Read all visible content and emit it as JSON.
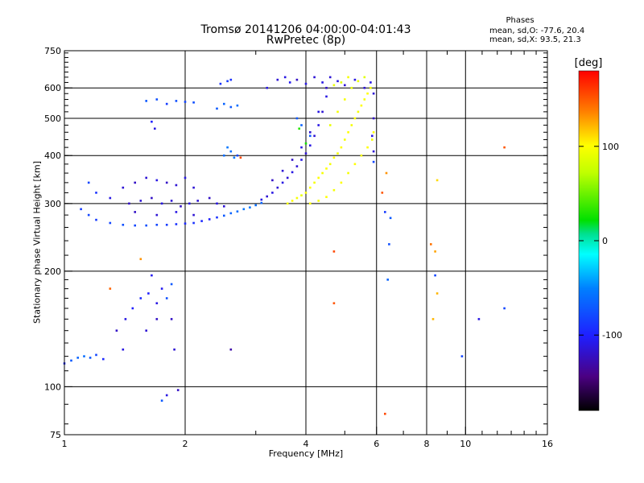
{
  "chart_data": {
    "type": "scatter",
    "title": "Tromsø 20141206 04:00:00-04:01:43",
    "subtitle": "RwPretec (8p)",
    "xlabel": "Frequency [MHz]",
    "ylabel": "Stationary phase Virtual Height [km]",
    "x_scale": "log",
    "y_scale": "log",
    "xlim": [
      1,
      16
    ],
    "ylim": [
      75,
      750
    ],
    "x_ticks": [
      {
        "value": 1,
        "label": "1"
      },
      {
        "value": 2,
        "label": "2"
      },
      {
        "value": 4,
        "label": "4"
      },
      {
        "value": 6,
        "label": "6"
      },
      {
        "value": 8,
        "label": "8"
      },
      {
        "value": 10,
        "label": "10"
      },
      {
        "value": 16,
        "label": "16"
      }
    ],
    "y_ticks": [
      {
        "value": 75,
        "label": "75"
      },
      {
        "value": 100,
        "label": "100"
      },
      {
        "value": 200,
        "label": "200"
      },
      {
        "value": 300,
        "label": "300"
      },
      {
        "value": 400,
        "label": "400"
      },
      {
        "value": 500,
        "label": "500"
      },
      {
        "value": 600,
        "label": "600"
      },
      {
        "value": 750,
        "label": "750"
      }
    ],
    "x_gridlines": [
      2,
      4,
      6,
      8,
      10
    ],
    "y_gridlines": [
      100,
      200,
      300,
      400,
      500,
      600
    ],
    "phases_info": {
      "heading": "Phases",
      "o_line": "mean, sd,O: -77.6, 20.4",
      "x_line": "mean, sd,X:  93.5, 21.3"
    },
    "colorbar": {
      "label": "[deg]",
      "range": [
        -180,
        180
      ],
      "ticks": [
        {
          "value": 100,
          "label": "100"
        },
        {
          "value": 0,
          "label": "0"
        },
        {
          "value": -100,
          "label": "-100"
        }
      ]
    },
    "points": [
      [
        1.0,
        115,
        -95
      ],
      [
        1.04,
        117,
        -70
      ],
      [
        1.08,
        119,
        -65
      ],
      [
        1.12,
        120,
        -60
      ],
      [
        1.16,
        119,
        -70
      ],
      [
        1.2,
        121,
        -80
      ],
      [
        1.25,
        118,
        -95
      ],
      [
        1.35,
        140,
        -120
      ],
      [
        1.42,
        150,
        -110
      ],
      [
        1.48,
        160,
        -100
      ],
      [
        1.55,
        170,
        -95
      ],
      [
        1.62,
        175,
        -100
      ],
      [
        1.7,
        165,
        -110
      ],
      [
        1.75,
        180,
        -105
      ],
      [
        1.8,
        170,
        -75
      ],
      [
        1.85,
        185,
        -70
      ],
      [
        1.7,
        150,
        -120
      ],
      [
        1.6,
        140,
        -115
      ],
      [
        1.85,
        150,
        -120
      ],
      [
        1.4,
        125,
        -110
      ],
      [
        1.65,
        195,
        -105
      ],
      [
        1.3,
        180,
        145
      ],
      [
        1.55,
        215,
        130
      ],
      [
        1.88,
        125,
        -115
      ],
      [
        1.92,
        98,
        -120
      ],
      [
        1.8,
        95,
        -110
      ],
      [
        1.75,
        92,
        -70
      ],
      [
        2.6,
        125,
        -130
      ],
      [
        4.7,
        225,
        155
      ],
      [
        4.7,
        165,
        150
      ],
      [
        6.3,
        85,
        155
      ],
      [
        6.4,
        190,
        -65
      ],
      [
        6.45,
        235,
        -75
      ],
      [
        6.3,
        285,
        -85
      ],
      [
        6.2,
        320,
        150
      ],
      [
        6.35,
        360,
        130
      ],
      [
        6.5,
        275,
        -70
      ],
      [
        8.2,
        235,
        140
      ],
      [
        8.4,
        225,
        125
      ],
      [
        8.5,
        175,
        120
      ],
      [
        8.3,
        150,
        120
      ],
      [
        8.4,
        195,
        -80
      ],
      [
        9.8,
        120,
        -80
      ],
      [
        10.8,
        150,
        -110
      ],
      [
        12.5,
        160,
        -80
      ],
      [
        12.5,
        420,
        150
      ],
      [
        8.5,
        345,
        110
      ],
      [
        5.9,
        385,
        -80
      ],
      [
        1.6,
        555,
        -70
      ],
      [
        1.7,
        560,
        -75
      ],
      [
        1.8,
        545,
        -85
      ],
      [
        1.9,
        555,
        -75
      ],
      [
        2.0,
        552,
        -80
      ],
      [
        2.1,
        550,
        -75
      ],
      [
        1.65,
        490,
        -100
      ],
      [
        1.68,
        470,
        -110
      ],
      [
        2.4,
        530,
        -70
      ],
      [
        2.5,
        545,
        -65
      ],
      [
        2.6,
        535,
        -70
      ],
      [
        2.7,
        540,
        -60
      ],
      [
        2.45,
        615,
        -90
      ],
      [
        2.55,
        625,
        -85
      ],
      [
        2.6,
        630,
        -90
      ],
      [
        2.5,
        400,
        -60
      ],
      [
        2.55,
        420,
        -55
      ],
      [
        2.6,
        410,
        -60
      ],
      [
        2.65,
        395,
        -55
      ],
      [
        2.7,
        400,
        -80
      ],
      [
        2.75,
        395,
        155
      ],
      [
        1.15,
        340,
        -80
      ],
      [
        1.2,
        320,
        -90
      ],
      [
        1.3,
        310,
        -110
      ],
      [
        1.4,
        330,
        -115
      ],
      [
        1.5,
        340,
        -120
      ],
      [
        1.6,
        350,
        -115
      ],
      [
        1.7,
        345,
        -110
      ],
      [
        1.8,
        340,
        -120
      ],
      [
        1.9,
        335,
        -115
      ],
      [
        2.0,
        350,
        -110
      ],
      [
        2.1,
        330,
        -115
      ],
      [
        1.45,
        300,
        -120
      ],
      [
        1.55,
        305,
        -115
      ],
      [
        1.65,
        310,
        -120
      ],
      [
        1.75,
        300,
        -110
      ],
      [
        1.85,
        305,
        -115
      ],
      [
        1.95,
        295,
        -120
      ],
      [
        2.05,
        300,
        -110
      ],
      [
        2.15,
        305,
        -115
      ],
      [
        2.3,
        310,
        -120
      ],
      [
        2.4,
        300,
        -110
      ],
      [
        2.5,
        295,
        -115
      ],
      [
        1.5,
        285,
        -120
      ],
      [
        1.7,
        280,
        -115
      ],
      [
        1.9,
        285,
        -110
      ],
      [
        2.1,
        280,
        -115
      ],
      [
        1.1,
        290,
        -85
      ],
      [
        1.15,
        280,
        -80
      ],
      [
        1.2,
        272,
        -85
      ],
      [
        1.3,
        267,
        -80
      ],
      [
        1.4,
        264,
        -75
      ],
      [
        1.5,
        263,
        -80
      ],
      [
        1.6,
        263,
        -75
      ],
      [
        1.7,
        264,
        -80
      ],
      [
        1.8,
        264,
        -85
      ],
      [
        1.9,
        265,
        -90
      ],
      [
        2.0,
        266,
        -95
      ],
      [
        2.1,
        267,
        -90
      ],
      [
        2.2,
        270,
        -95
      ],
      [
        2.3,
        273,
        -100
      ],
      [
        2.4,
        276,
        -90
      ],
      [
        2.5,
        279,
        -70
      ],
      [
        2.6,
        283,
        -65
      ],
      [
        2.7,
        286,
        -60
      ],
      [
        2.8,
        290,
        -55
      ],
      [
        2.9,
        293,
        -55
      ],
      [
        3.0,
        297,
        -60
      ],
      [
        3.1,
        301,
        -65
      ],
      [
        3.1,
        307,
        -110
      ],
      [
        3.2,
        313,
        -115
      ],
      [
        3.3,
        320,
        -110
      ],
      [
        3.4,
        330,
        -115
      ],
      [
        3.5,
        340,
        -110
      ],
      [
        3.6,
        350,
        -115
      ],
      [
        3.7,
        362,
        -110
      ],
      [
        3.8,
        375,
        -115
      ],
      [
        3.9,
        390,
        -110
      ],
      [
        4.0,
        405,
        -115
      ],
      [
        4.1,
        425,
        -110
      ],
      [
        4.2,
        450,
        -115
      ],
      [
        4.3,
        480,
        -110
      ],
      [
        4.4,
        520,
        -115
      ],
      [
        4.5,
        570,
        -110
      ],
      [
        3.3,
        345,
        -120
      ],
      [
        3.5,
        365,
        -115
      ],
      [
        3.7,
        390,
        -120
      ],
      [
        3.9,
        420,
        -110
      ],
      [
        4.1,
        460,
        -115
      ],
      [
        4.3,
        520,
        -110
      ],
      [
        4.5,
        600,
        -120
      ],
      [
        3.2,
        600,
        -110
      ],
      [
        3.4,
        630,
        -115
      ],
      [
        3.55,
        640,
        -110
      ],
      [
        3.65,
        620,
        -105
      ],
      [
        3.8,
        630,
        -120
      ],
      [
        4.0,
        615,
        -110
      ],
      [
        4.2,
        640,
        -115
      ],
      [
        4.4,
        620,
        -110
      ],
      [
        4.6,
        640,
        -115
      ],
      [
        4.8,
        625,
        -110
      ],
      [
        5.0,
        610,
        -115
      ],
      [
        5.3,
        630,
        -110
      ],
      [
        5.6,
        600,
        -115
      ],
      [
        5.8,
        620,
        -110
      ],
      [
        5.9,
        580,
        -115
      ],
      [
        5.9,
        500,
        -120
      ],
      [
        5.85,
        450,
        -110
      ],
      [
        5.9,
        410,
        -115
      ],
      [
        3.8,
        500,
        -70
      ],
      [
        3.9,
        480,
        -65
      ],
      [
        3.85,
        470,
        30
      ],
      [
        4.0,
        430,
        25
      ],
      [
        4.1,
        450,
        -70
      ],
      [
        3.6,
        300,
        95
      ],
      [
        3.7,
        305,
        100
      ],
      [
        3.8,
        310,
        95
      ],
      [
        3.9,
        315,
        90
      ],
      [
        4.0,
        320,
        95
      ],
      [
        4.1,
        330,
        100
      ],
      [
        4.2,
        340,
        95
      ],
      [
        4.3,
        350,
        100
      ],
      [
        4.4,
        360,
        95
      ],
      [
        4.5,
        370,
        100
      ],
      [
        4.6,
        380,
        95
      ],
      [
        4.7,
        395,
        100
      ],
      [
        4.8,
        405,
        95
      ],
      [
        4.9,
        420,
        100
      ],
      [
        5.0,
        440,
        95
      ],
      [
        5.1,
        460,
        100
      ],
      [
        5.2,
        480,
        95
      ],
      [
        5.3,
        500,
        100
      ],
      [
        5.4,
        520,
        95
      ],
      [
        5.5,
        540,
        100
      ],
      [
        5.6,
        560,
        95
      ],
      [
        5.7,
        580,
        100
      ],
      [
        5.8,
        600,
        95
      ],
      [
        5.9,
        460,
        100
      ],
      [
        5.85,
        440,
        95
      ],
      [
        5.7,
        420,
        100
      ],
      [
        5.5,
        400,
        95
      ],
      [
        5.3,
        380,
        100
      ],
      [
        5.1,
        360,
        95
      ],
      [
        4.9,
        340,
        100
      ],
      [
        4.7,
        325,
        95
      ],
      [
        4.5,
        312,
        100
      ],
      [
        4.3,
        305,
        95
      ],
      [
        4.1,
        300,
        100
      ],
      [
        4.7,
        610,
        90
      ],
      [
        4.9,
        620,
        85
      ],
      [
        5.1,
        640,
        95
      ],
      [
        5.4,
        625,
        90
      ],
      [
        5.6,
        640,
        85
      ],
      [
        5.0,
        560,
        95
      ],
      [
        5.2,
        600,
        90
      ],
      [
        4.8,
        520,
        95
      ],
      [
        4.6,
        480,
        90
      ]
    ]
  }
}
